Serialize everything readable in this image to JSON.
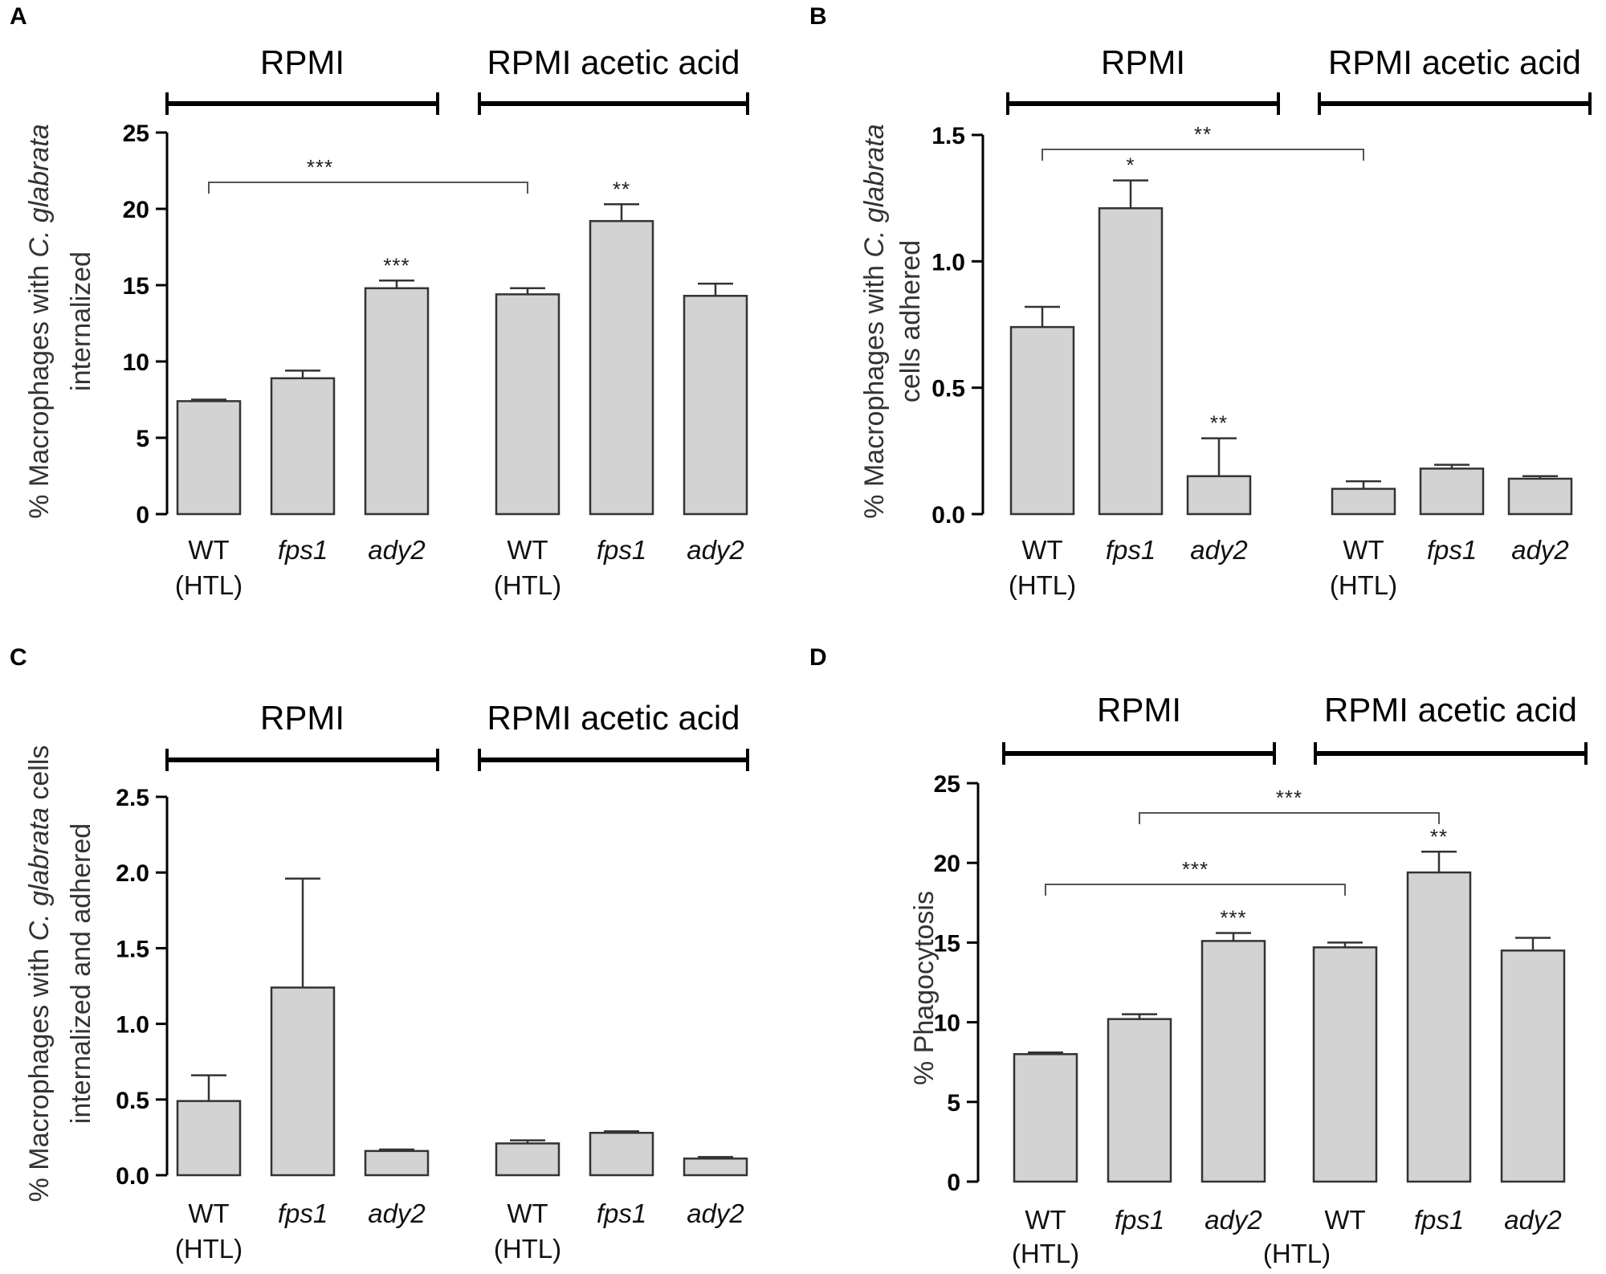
{
  "chart_data": [
    {
      "panel": "A",
      "type": "bar",
      "groups": [
        "RPMI",
        "RPMI acetic acid"
      ],
      "categories": [
        "WT",
        "fps1",
        "ady2",
        "WT",
        "fps1",
        "ady2"
      ],
      "category_sub": [
        "(HTL)",
        "",
        "",
        "(HTL)",
        "",
        ""
      ],
      "category_italic": [
        false,
        true,
        true,
        false,
        true,
        true
      ],
      "values": [
        7.4,
        8.9,
        14.8,
        14.4,
        19.2,
        14.3
      ],
      "errors": [
        0.1,
        0.5,
        0.5,
        0.4,
        1.1,
        0.8
      ],
      "ylabel_prefix": "% Macrophages with ",
      "ylabel_species": "C. glabrata",
      "ylabel_line2": "internalized",
      "ylim": [
        0,
        25
      ],
      "yticks": [
        "0",
        "5",
        "10",
        "15",
        "20",
        "25"
      ],
      "annotations": [
        {
          "bar": 2,
          "text": "***"
        },
        {
          "bar": 4,
          "text": "**"
        }
      ],
      "brackets": [
        {
          "from": 0,
          "to": 3,
          "text": "***"
        }
      ]
    },
    {
      "panel": "B",
      "type": "bar",
      "groups": [
        "RPMI",
        "RPMI acetic acid"
      ],
      "categories": [
        "WT",
        "fps1",
        "ady2",
        "WT",
        "fps1",
        "ady2"
      ],
      "category_sub": [
        "(HTL)",
        "",
        "",
        "(HTL)",
        "",
        ""
      ],
      "category_italic": [
        false,
        true,
        true,
        false,
        true,
        true
      ],
      "values": [
        0.74,
        1.21,
        0.15,
        0.1,
        0.18,
        0.14
      ],
      "errors": [
        0.08,
        0.11,
        0.15,
        0.03,
        0.015,
        0.01
      ],
      "ylabel_prefix": "% Macrophages with ",
      "ylabel_species": "C. glabrata",
      "ylabel_line2": "cells adhered",
      "ylim": [
        0,
        1.5
      ],
      "yticks": [
        "0.0",
        "0.5",
        "1.0",
        "1.5"
      ],
      "annotations": [
        {
          "bar": 1,
          "text": "*"
        },
        {
          "bar": 2,
          "text": "**"
        }
      ],
      "brackets": [
        {
          "from": 0,
          "to": 3,
          "text": "**"
        }
      ]
    },
    {
      "panel": "C",
      "type": "bar",
      "groups": [
        "RPMI",
        "RPMI acetic acid"
      ],
      "categories": [
        "WT",
        "fps1",
        "ady2",
        "WT",
        "fps1",
        "ady2"
      ],
      "category_sub": [
        "(HTL)",
        "",
        "",
        "(HTL)",
        "",
        ""
      ],
      "category_italic": [
        false,
        true,
        true,
        false,
        true,
        true
      ],
      "values": [
        0.49,
        1.24,
        0.16,
        0.21,
        0.28,
        0.11
      ],
      "errors": [
        0.17,
        0.72,
        0.01,
        0.02,
        0.01,
        0.01
      ],
      "ylabel_prefix": "% Macrophages with ",
      "ylabel_species": "C. glabrata",
      "ylabel_suffix": " cells",
      "ylabel_line2": "internalized and adhered",
      "ylim": [
        0,
        2.5
      ],
      "yticks": [
        "0.0",
        "0.5",
        "1.0",
        "1.5",
        "2.0",
        "2.5"
      ],
      "annotations": [],
      "brackets": []
    },
    {
      "panel": "D",
      "type": "bar",
      "groups": [
        "RPMI",
        "RPMI acetic acid"
      ],
      "categories": [
        "WT",
        "fps1",
        "ady2",
        "WT",
        "fps1",
        "ady2"
      ],
      "category_sub": [
        "(HTL)",
        "",
        "",
        "(HTL)",
        "",
        ""
      ],
      "category_italic": [
        false,
        true,
        true,
        false,
        true,
        true
      ],
      "values": [
        8.0,
        10.2,
        15.1,
        14.7,
        19.4,
        14.5
      ],
      "errors": [
        0.1,
        0.3,
        0.5,
        0.3,
        1.3,
        0.8
      ],
      "ylabel_prefix": "% Phagocytosis",
      "ylabel_species": "",
      "ylabel_line2": "",
      "ylim": [
        0,
        25
      ],
      "yticks": [
        "0",
        "5",
        "10",
        "15",
        "20",
        "25"
      ],
      "annotations": [
        {
          "bar": 2,
          "text": "***"
        },
        {
          "bar": 4,
          "text": "**"
        }
      ],
      "brackets": [
        {
          "from": 0,
          "to": 3,
          "text": "***"
        },
        {
          "from": 1,
          "to": 4,
          "text": "***"
        }
      ]
    }
  ]
}
